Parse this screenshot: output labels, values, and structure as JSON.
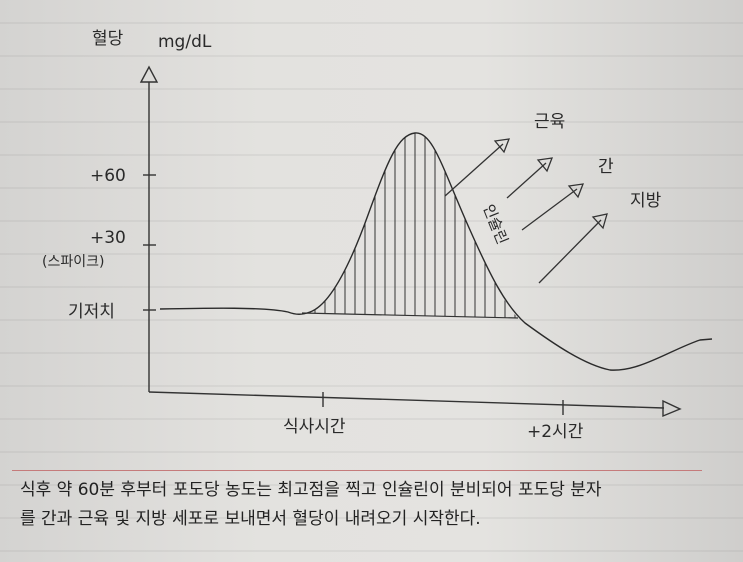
{
  "figure": {
    "y_axis_title": "혈당",
    "y_axis_unit": "mg/dL",
    "y_ticks": {
      "plus60": "+60",
      "plus30": "+30",
      "spike": "(스파이크)",
      "baseline": "기저치"
    },
    "x_ticks": {
      "meal_time": "식사시간",
      "plus_2h": "+2시간"
    },
    "insulin_label": "인슐린",
    "targets": {
      "muscle": "근육",
      "liver": "간",
      "fat": "지방"
    }
  },
  "caption": {
    "line1": "식후 약 60분 후부터 포도당 농도는 최고점을 찍고 인슐린이 분비되어 포도당 분자",
    "line2": "를 간과 근육 및 지방 세포로 보내면서 혈당이 내려오기 시작한다."
  }
}
